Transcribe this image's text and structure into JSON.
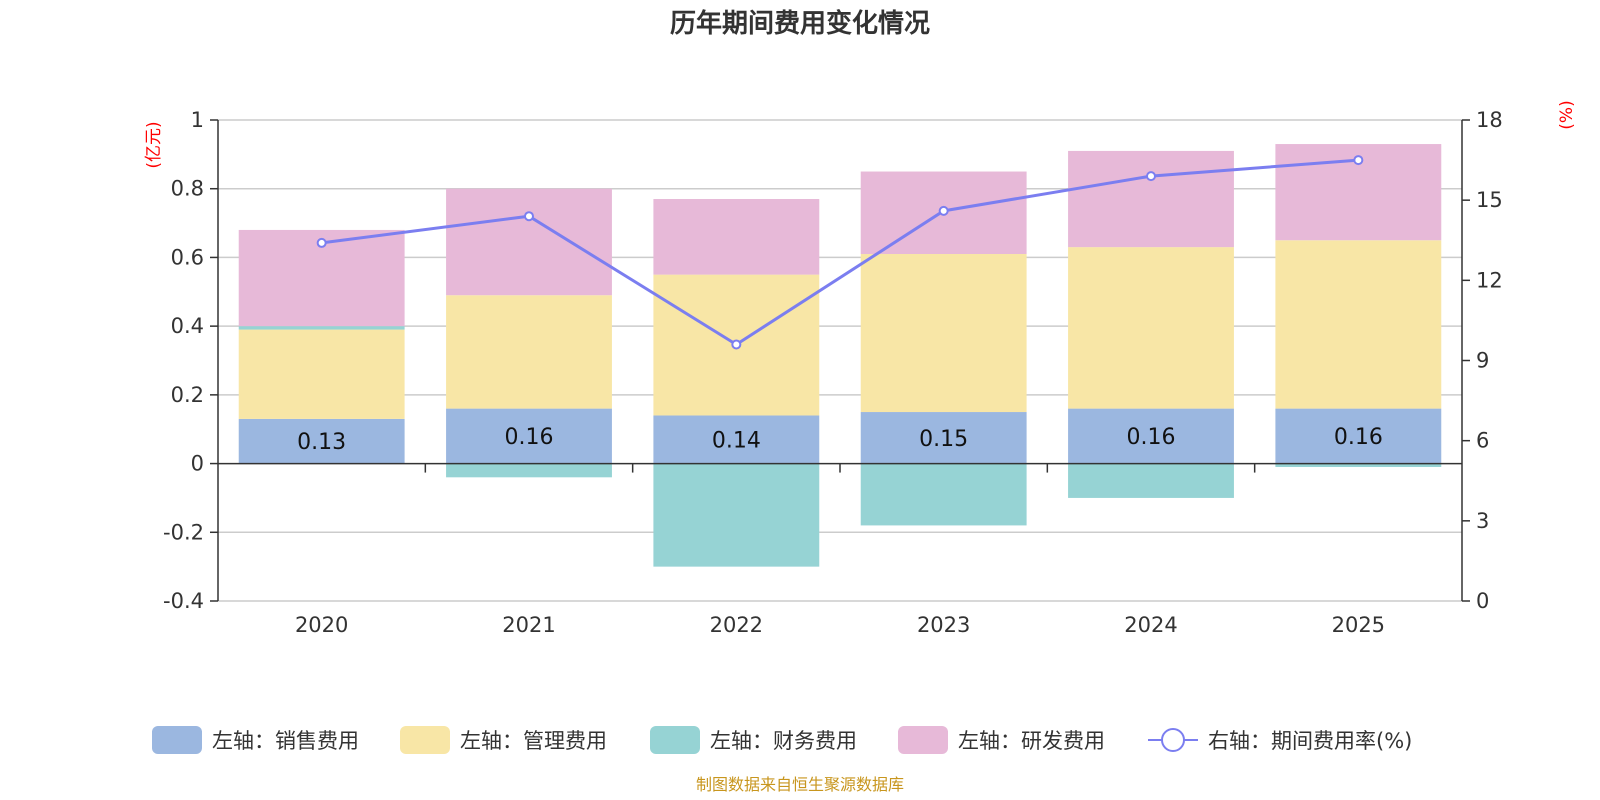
{
  "chart_data": {
    "type": "bar",
    "title": "历年期间费用变化情况",
    "categories": [
      "2020",
      "2021",
      "2022",
      "2023",
      "2024",
      "2025"
    ],
    "left_axis": {
      "unit": "(亿元)",
      "ylim": [
        -0.4,
        1
      ],
      "ticks": [
        "1",
        "0.8",
        "0.6",
        "0.4",
        "0.2",
        "0",
        "-0.2",
        "-0.4"
      ],
      "tick_values": [
        1,
        0.8,
        0.6,
        0.4,
        0.2,
        0,
        -0.2,
        -0.4
      ]
    },
    "right_axis": {
      "unit": "(%)",
      "ylim": [
        0,
        18
      ],
      "ticks": [
        "18",
        "15",
        "12",
        "9",
        "6",
        "3",
        "0"
      ],
      "tick_values": [
        18,
        15,
        12,
        9,
        6,
        3,
        0
      ]
    },
    "series": [
      {
        "name": "左轴：销售费用",
        "type": "bar",
        "axis": "left",
        "color": "#9bb7e0",
        "values": [
          0.13,
          0.16,
          0.14,
          0.15,
          0.16,
          0.16
        ],
        "labels": [
          "0.13",
          "0.16",
          "0.14",
          "0.15",
          "0.16",
          "0.16"
        ]
      },
      {
        "name": "左轴：管理费用",
        "type": "bar",
        "axis": "left",
        "color": "#f8e6a6",
        "values": [
          0.26,
          0.33,
          0.41,
          0.46,
          0.47,
          0.49
        ]
      },
      {
        "name": "左轴：财务费用",
        "type": "bar",
        "axis": "left",
        "color": "#96d3d4",
        "values": [
          0.01,
          -0.04,
          -0.3,
          -0.18,
          -0.1,
          -0.01
        ]
      },
      {
        "name": "左轴：研发费用",
        "type": "bar",
        "axis": "left",
        "color": "#e7b9d8",
        "values": [
          0.28,
          0.31,
          0.22,
          0.24,
          0.28,
          0.28
        ]
      },
      {
        "name": "右轴：期间费用率(%)",
        "type": "line",
        "axis": "right",
        "color": "#7b7ef0",
        "values": [
          13.4,
          14.4,
          9.6,
          14.6,
          15.9,
          16.5
        ]
      }
    ],
    "source": "制图数据来自恒生聚源数据库"
  }
}
